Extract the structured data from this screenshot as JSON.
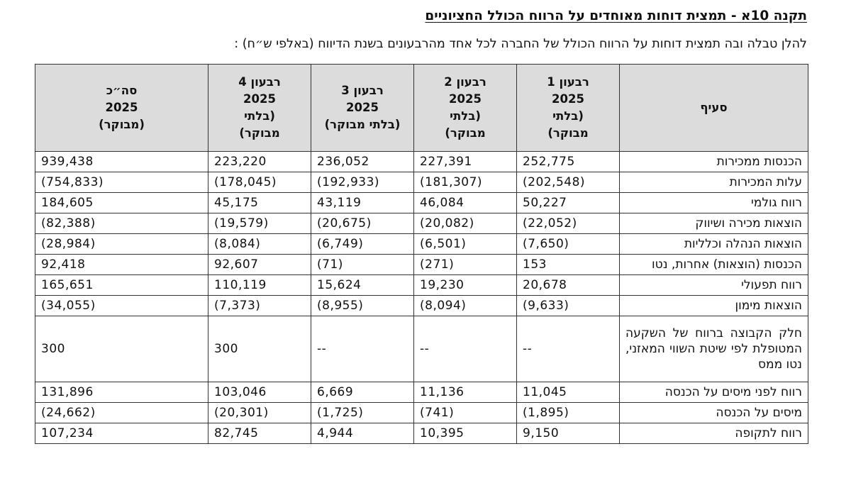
{
  "document": {
    "title": "תקנה 10א - תמצית דוחות מאוחדים על הרווח הכולל החציוניים",
    "subtitle": "להלן טבלה ובה תמצית דוחות על הרווח הכולל של החברה לכל אחד מהרבעונים בשנת הדיווח (באלפי ש״ח) :"
  },
  "table": {
    "headers": [
      {
        "lines": [
          "סעיף"
        ]
      },
      {
        "lines": [
          "רבעון 1",
          "2025",
          "(בלתי",
          "מבוקר)"
        ]
      },
      {
        "lines": [
          "רבעון 2",
          "2025",
          "(בלתי",
          "מבוקר)"
        ]
      },
      {
        "lines": [
          "רבעון 3",
          "2025",
          "(בלתי מבוקר)"
        ]
      },
      {
        "lines": [
          "רבעון 4",
          "2025",
          "(בלתי",
          "מבוקר)"
        ]
      },
      {
        "lines": [
          "סה״כ",
          "2025",
          "(מבוקר)"
        ]
      }
    ],
    "rows": [
      {
        "label": "הכנסות ממכירות",
        "values": [
          "252,775",
          "227,391",
          "236,052",
          "223,220",
          "939,438"
        ]
      },
      {
        "label": "עלות המכירות",
        "values": [
          "(202,548)",
          "(181,307)",
          "(192,933)",
          "(178,045)",
          "(754,833)"
        ]
      },
      {
        "label": "רווח גולמי",
        "values": [
          "50,227",
          "46,084",
          "43,119",
          "45,175",
          "184,605"
        ]
      },
      {
        "label": "הוצאות מכירה ושיווק",
        "values": [
          "(22,052)",
          "(20,082)",
          "(20,675)",
          "(19,579)",
          "(82,388)"
        ]
      },
      {
        "label": "הוצאות הנהלה וכלליות",
        "values": [
          "(7,650)",
          "(6,501)",
          "(6,749)",
          "(8,084)",
          "(28,984)"
        ]
      },
      {
        "label": "הכנסות (הוצאות) אחרות, נטו",
        "values": [
          "153",
          "(271)",
          "(71)",
          "92,607",
          "92,418"
        ]
      },
      {
        "label": "רווח תפעולי",
        "values": [
          "20,678",
          "19,230",
          "15,624",
          "110,119",
          "165,651"
        ]
      },
      {
        "label": "הוצאות מימון",
        "values": [
          "(9,633)",
          "(8,094)",
          "(8,955)",
          "(7,373)",
          "(34,055)"
        ]
      },
      {
        "label": "חלק הקבוצה ברווח של השקעה המטופלת לפי שיטת השווי המאזני, נטו ממס",
        "values": [
          "--",
          "--",
          "--",
          "300",
          "300"
        ]
      },
      {
        "label": "רווח לפני מיסים על הכנסה",
        "values": [
          "11,045",
          "11,136",
          "6,669",
          "103,046",
          "131,896"
        ]
      },
      {
        "label": "מיסים על הכנסה",
        "values": [
          "(1,895)",
          "(741)",
          "(1,725)",
          "(20,301)",
          "(24,662)"
        ]
      },
      {
        "label": "רווח לתקופה",
        "values": [
          "9,150",
          "10,395",
          "4,944",
          "82,745",
          "107,234"
        ]
      }
    ]
  }
}
